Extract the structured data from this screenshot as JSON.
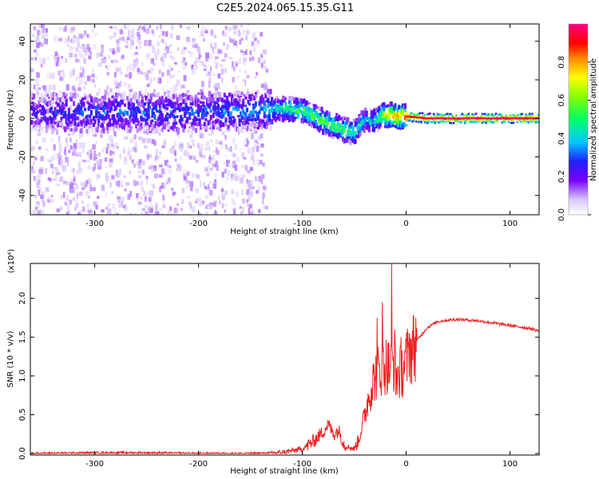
{
  "title": "C2E5.2024.065.15.35.G11",
  "chart_data": [
    {
      "type": "heatmap",
      "xlabel": "Height of straight line (km)",
      "ylabel": "Frequency (Hz)",
      "xlim": [
        -362,
        128
      ],
      "ylim": [
        -50,
        49
      ],
      "xticks": [
        -300,
        -200,
        -100,
        0,
        100
      ],
      "yticks": [
        -40,
        -20,
        0,
        20,
        40
      ],
      "colorbar": {
        "label": "Normalized spectral amplitude",
        "range": [
          0.0,
          1.0
        ],
        "ticks": [
          0.0,
          0.2,
          0.4,
          0.6,
          0.8
        ],
        "colormap": "rainbow"
      },
      "ridge": {
        "x": [
          -362,
          -300,
          -200,
          -140,
          -120,
          -100,
          -90,
          -80,
          -70,
          -60,
          -50,
          -45,
          -40,
          -35,
          -30,
          -25,
          -20,
          -10,
          0,
          20,
          50,
          100,
          128
        ],
        "center_hz": [
          3,
          3,
          3,
          4,
          5,
          4,
          1,
          -2,
          -4,
          -6,
          -7,
          -3,
          0,
          -2,
          -1,
          1,
          2,
          1,
          1,
          0,
          0,
          0,
          0
        ],
        "amplitude": [
          0.25,
          0.3,
          0.3,
          0.35,
          0.5,
          0.55,
          0.55,
          0.6,
          0.55,
          0.55,
          0.5,
          0.45,
          0.4,
          0.4,
          0.45,
          0.6,
          0.75,
          0.85,
          0.9,
          0.95,
          0.97,
          0.97,
          0.95
        ]
      },
      "noise_extent_x": [
        -362,
        -135
      ]
    },
    {
      "type": "line",
      "xlabel": "Height of straight line (km)",
      "ylabel": "SNR (10 * v/v)",
      "y_multiplier": "(x10⁴)",
      "xlim": [
        -362,
        128
      ],
      "ylim": [
        -0.02,
        2.45
      ],
      "xticks": [
        -300,
        -200,
        -100,
        0,
        100
      ],
      "yticks": [
        0.0,
        0.5,
        1.0,
        1.5,
        2.0
      ],
      "series": [
        {
          "color": "#ee2222",
          "x": [
            -362,
            -300,
            -250,
            -200,
            -150,
            -120,
            -100,
            -90,
            -80,
            -75,
            -70,
            -65,
            -60,
            -55,
            -50,
            -45,
            -40,
            -35,
            -30,
            -25,
            -20,
            -15,
            -12,
            -10,
            -5,
            0,
            10,
            20,
            30,
            40,
            50,
            60,
            70,
            80,
            90,
            100,
            110,
            120,
            128
          ],
          "y": [
            0.0,
            0.01,
            0.01,
            0.0,
            0.0,
            0.01,
            0.06,
            0.15,
            0.28,
            0.38,
            0.25,
            0.3,
            0.12,
            0.08,
            0.06,
            0.2,
            0.5,
            0.8,
            1.0,
            1.1,
            1.15,
            1.1,
            1.2,
            1.0,
            1.05,
            1.2,
            1.45,
            1.62,
            1.7,
            1.72,
            1.73,
            1.72,
            1.71,
            1.69,
            1.67,
            1.65,
            1.63,
            1.61,
            1.58
          ]
        }
      ],
      "spikes": [
        {
          "x": -28,
          "y": 1.75
        },
        {
          "x": -23,
          "y": 1.95
        },
        {
          "x": -14,
          "y": 2.45
        },
        {
          "x": -11,
          "y": 1.6
        },
        {
          "x": -5,
          "y": 1.5
        },
        {
          "x": 3,
          "y": 1.55
        },
        {
          "x": 10,
          "y": 1.62
        }
      ]
    }
  ]
}
